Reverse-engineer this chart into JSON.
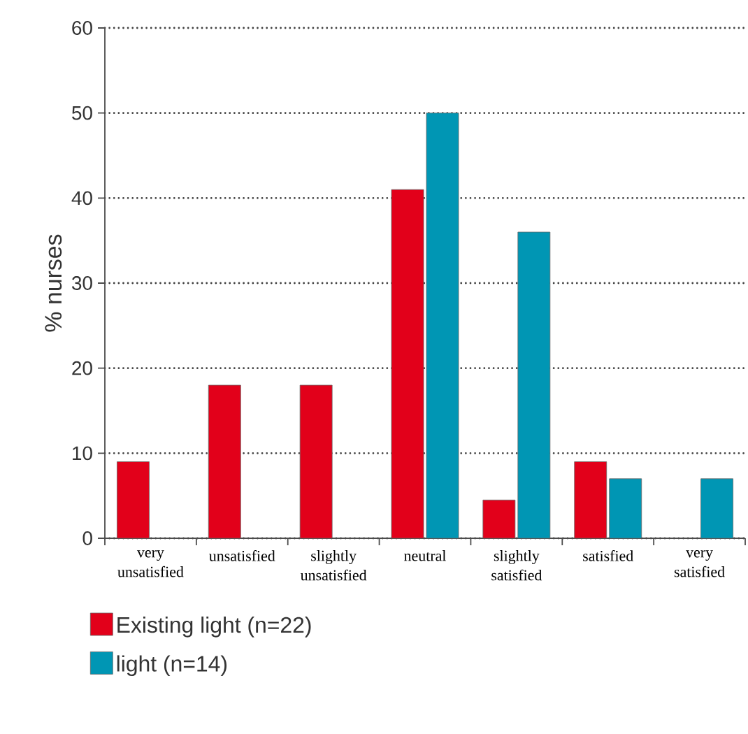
{
  "chart_data": {
    "type": "bar",
    "ylabel": "% nurses",
    "categories": [
      "very unsatisfied",
      "unsatisfied",
      "slightly unsatisfied",
      "neutral",
      "slightly satisfied",
      "satisfied",
      "very satisfied"
    ],
    "series": [
      {
        "name": "Existing light (n=22)",
        "color": "#e2001a",
        "values": [
          9,
          18,
          18,
          41,
          4.5,
          9,
          null
        ]
      },
      {
        "name": "light (n=14)",
        "color": "#0096b4",
        "values": [
          null,
          null,
          null,
          50,
          36,
          7,
          7
        ]
      }
    ],
    "ylim": [
      0,
      60
    ],
    "yticks": [
      0,
      10,
      20,
      30,
      40,
      50,
      60
    ],
    "grid": "y",
    "legend": "bottom left"
  }
}
